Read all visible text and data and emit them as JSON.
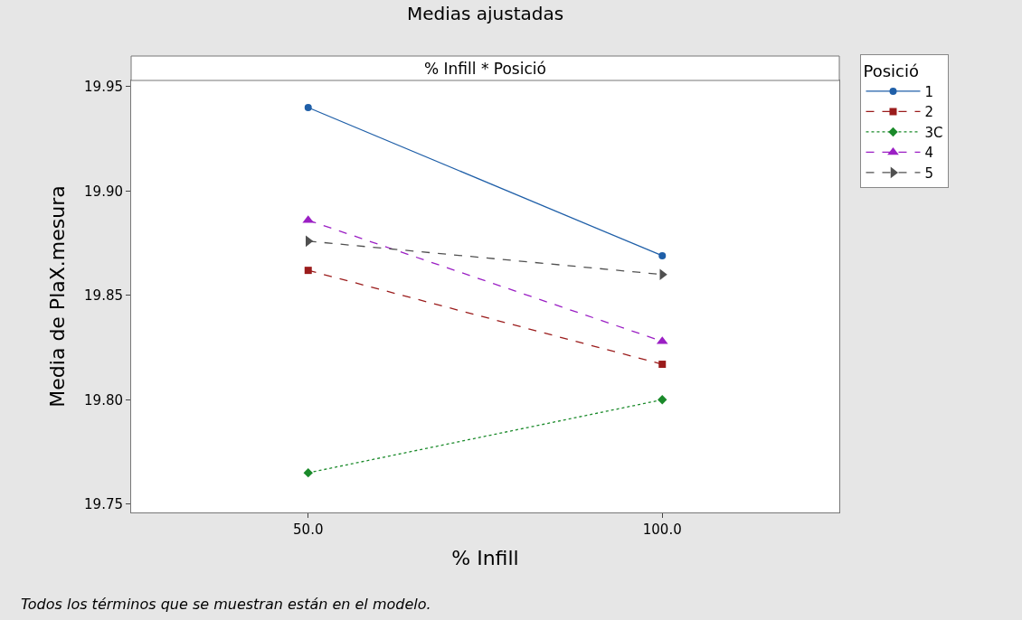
{
  "chart_data": {
    "type": "line",
    "title": "Medias ajustadas",
    "subtitle": "% Infill * Posició",
    "xlabel": "% Infill",
    "ylabel": "Media de PlaX.mesura",
    "legend_title": "Posició",
    "categories": [
      "50.0",
      "100.0"
    ],
    "series": [
      {
        "name": "1",
        "color": "#1f5fa8",
        "values": [
          19.94,
          19.869
        ],
        "marker": "circle",
        "line_style": "solid"
      },
      {
        "name": "2",
        "color": "#9b1c1c",
        "values": [
          19.862,
          19.817
        ],
        "marker": "square",
        "line_style": "dashed"
      },
      {
        "name": "3C",
        "color": "#1a8a2a",
        "values": [
          19.765,
          19.8
        ],
        "marker": "diamond",
        "line_style": "dotted"
      },
      {
        "name": "4",
        "color": "#9b1fc4",
        "values": [
          19.886,
          19.828
        ],
        "marker": "triangle",
        "line_style": "dashed"
      },
      {
        "name": "5",
        "color": "#505050",
        "values": [
          19.876,
          19.86
        ],
        "marker": "triangle-right",
        "line_style": "dashed"
      }
    ],
    "ylim": [
      19.746,
      19.953
    ],
    "yticks": [
      19.75,
      {
        "value": 19.8,
        "label": "19.80"
      },
      19.85,
      {
        "value": 19.9,
        "label": "19.90"
      },
      19.95
    ],
    "legend": "right",
    "annotations": [
      "Todos los términos que se muestran están en el modelo."
    ]
  }
}
